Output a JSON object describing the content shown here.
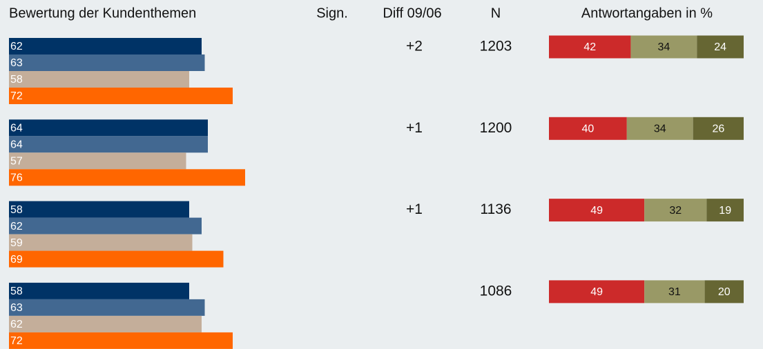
{
  "header": {
    "title": "Bewertung der Kundenthemen",
    "sign": "Sign.",
    "diff": "Diff 09/06",
    "n": "N",
    "answers": "Antwortangaben in %"
  },
  "bar_colors": [
    "#003366",
    "#426891",
    "#c4ae9a",
    "#ff6600"
  ],
  "answer_colors": [
    "#cc2a2a",
    "#999966",
    "#666633"
  ],
  "rows": [
    {
      "bars": [
        62,
        63,
        58,
        72
      ],
      "diff": "+2",
      "n": 1203,
      "answers": [
        42,
        34,
        24
      ]
    },
    {
      "bars": [
        64,
        64,
        57,
        76
      ],
      "diff": "+1",
      "n": 1200,
      "answers": [
        40,
        34,
        26
      ]
    },
    {
      "bars": [
        58,
        62,
        59,
        69
      ],
      "diff": "+1",
      "n": 1136,
      "answers": [
        49,
        32,
        19
      ]
    },
    {
      "bars": [
        58,
        63,
        62,
        72
      ],
      "n": 1086,
      "answers": [
        49,
        31,
        20
      ]
    }
  ]
}
